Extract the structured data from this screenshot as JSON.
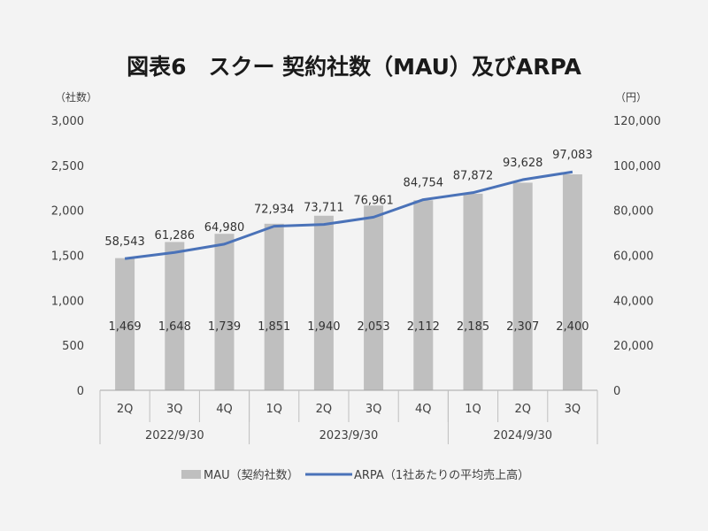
{
  "chart_data": {
    "type": "bar",
    "title": "図表6　スクー 契約社数（MAU）及びARPA",
    "y_left_unit": "（社数）",
    "y_right_unit": "（円）",
    "y_left_ticks": [
      "3,000",
      "2,500",
      "2,000",
      "1,500",
      "1,000",
      "500",
      "0"
    ],
    "y_right_ticks": [
      "120,000",
      "100,000",
      "80,000",
      "60,000",
      "40,000",
      "20,000",
      "0"
    ],
    "ylim_left": [
      0,
      3000
    ],
    "ylim_right": [
      0,
      120000
    ],
    "categories": [
      "2Q",
      "3Q",
      "4Q",
      "1Q",
      "2Q",
      "3Q",
      "4Q",
      "1Q",
      "2Q",
      "3Q"
    ],
    "groups": [
      {
        "label": "2022/9/30",
        "count": 3
      },
      {
        "label": "2023/9/30",
        "count": 4
      },
      {
        "label": "2024/9/30",
        "count": 3
      }
    ],
    "series": [
      {
        "name": "MAU（契約社数）",
        "kind": "bar",
        "axis": "left",
        "color": "#bfbfbf",
        "values": [
          1469,
          1648,
          1739,
          1851,
          1940,
          2053,
          2112,
          2185,
          2307,
          2400
        ],
        "labels": [
          "1,469",
          "1,648",
          "1,739",
          "1,851",
          "1,940",
          "2,053",
          "2,112",
          "2,185",
          "2,307",
          "2,400"
        ]
      },
      {
        "name": "ARPA（1社あたりの平均売上高）",
        "kind": "line",
        "axis": "right",
        "color": "#4a72b8",
        "values": [
          58543,
          61286,
          64980,
          72934,
          73711,
          76961,
          84754,
          87872,
          93628,
          97083
        ],
        "labels": [
          "58,543",
          "61,286",
          "64,980",
          "72,934",
          "73,711",
          "76,961",
          "84,754",
          "87,872",
          "93,628",
          "97,083"
        ]
      }
    ],
    "grid": false,
    "legend_position": "bottom"
  }
}
